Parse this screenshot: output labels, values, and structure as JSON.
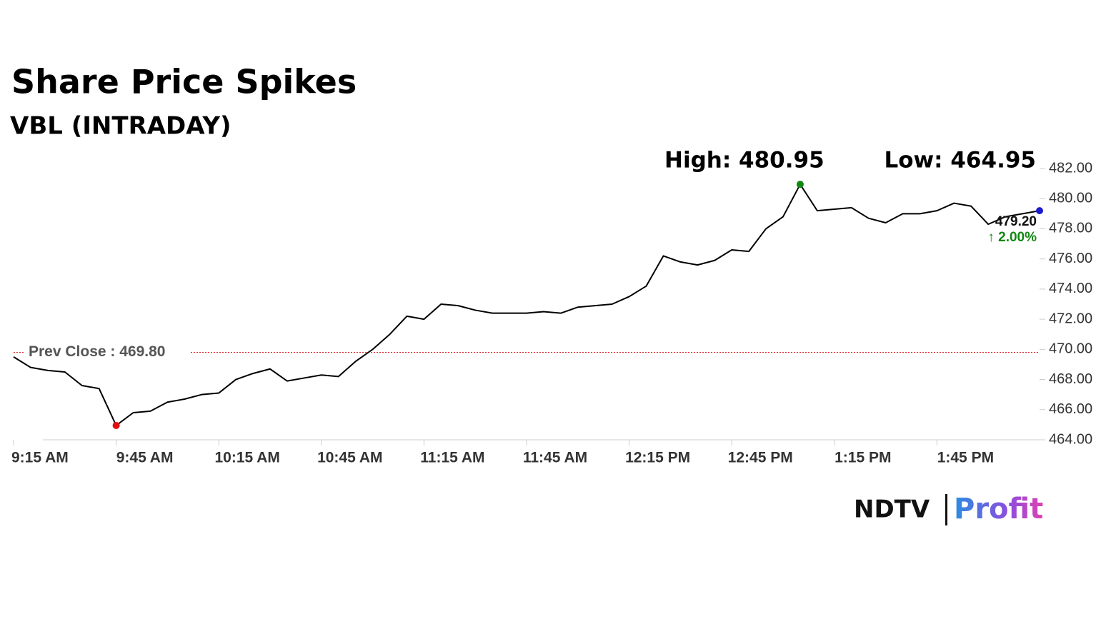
{
  "chart_data": {
    "type": "line",
    "title": "Share Price Spikes",
    "subtitle": "VBL (INTRADAY)",
    "annotations": [
      "High: 480.95",
      "Low: 464.95"
    ],
    "prev_close": {
      "value": 469.8,
      "label": "Prev Close : 469.80"
    },
    "last_label": "479.20",
    "change_label": "↑ 2.00%",
    "brand": [
      "NDTV",
      "Profit"
    ],
    "x": [
      555,
      560,
      565,
      570,
      575,
      580,
      585,
      590,
      595,
      600,
      605,
      610,
      615,
      620,
      625,
      630,
      635,
      640,
      645,
      650,
      655,
      660,
      665,
      670,
      675,
      680,
      685,
      690,
      695,
      700,
      705,
      710,
      715,
      720,
      725,
      730,
      735,
      740,
      745,
      750,
      755,
      760,
      765,
      770,
      775,
      780,
      785,
      790,
      795,
      800,
      805,
      810,
      815,
      820,
      825,
      830,
      835,
      840,
      845,
      850,
      855
    ],
    "series": [
      {
        "name": "VBL",
        "color": "#000000",
        "values": [
          469.5,
          468.8,
          468.6,
          468.5,
          467.6,
          467.4,
          464.95,
          465.8,
          465.9,
          466.5,
          466.7,
          467.0,
          467.1,
          468.0,
          468.4,
          468.7,
          467.9,
          468.1,
          468.3,
          468.2,
          469.2,
          470.0,
          471.0,
          472.2,
          472.0,
          473.0,
          472.9,
          472.6,
          472.4,
          472.4,
          472.4,
          472.5,
          472.4,
          472.8,
          472.9,
          473.0,
          473.5,
          474.2,
          476.2,
          475.8,
          475.6,
          475.9,
          476.6,
          476.5,
          478.0,
          478.8,
          480.95,
          479.2,
          479.3,
          479.4,
          478.7,
          478.4,
          479.0,
          479.0,
          479.2,
          479.7,
          479.5,
          478.3,
          478.8,
          479.0,
          479.2
        ]
      }
    ],
    "xlim": [
      555,
      855
    ],
    "xticks": [
      {
        "value": 555,
        "label": "9:15 AM"
      },
      {
        "value": 585,
        "label": "9:45 AM"
      },
      {
        "value": 615,
        "label": "10:15 AM"
      },
      {
        "value": 645,
        "label": "10:45 AM"
      },
      {
        "value": 675,
        "label": "11:15 AM"
      },
      {
        "value": 705,
        "label": "11:45 AM"
      },
      {
        "value": 735,
        "label": "12:15 PM"
      },
      {
        "value": 765,
        "label": "12:45 PM"
      },
      {
        "value": 795,
        "label": "1:15 PM"
      },
      {
        "value": 825,
        "label": "1:45 PM"
      }
    ],
    "ylim": [
      464,
      482
    ],
    "yticks": [
      {
        "value": 464,
        "label": "464.00"
      },
      {
        "value": 466,
        "label": "466.00"
      },
      {
        "value": 468,
        "label": "468.00"
      },
      {
        "value": 470,
        "label": "470.00"
      },
      {
        "value": 472,
        "label": "472.00"
      },
      {
        "value": 474,
        "label": "474.00"
      },
      {
        "value": 476,
        "label": "476.00"
      },
      {
        "value": 478,
        "label": "478.00"
      },
      {
        "value": 480,
        "label": "480.00"
      },
      {
        "value": 482,
        "label": "482.00"
      }
    ],
    "prev_close_color": "#d22",
    "high_color": "#118811",
    "low_color": "#e01010",
    "last_color": "#1a1ad0",
    "change_color": "#118811"
  }
}
